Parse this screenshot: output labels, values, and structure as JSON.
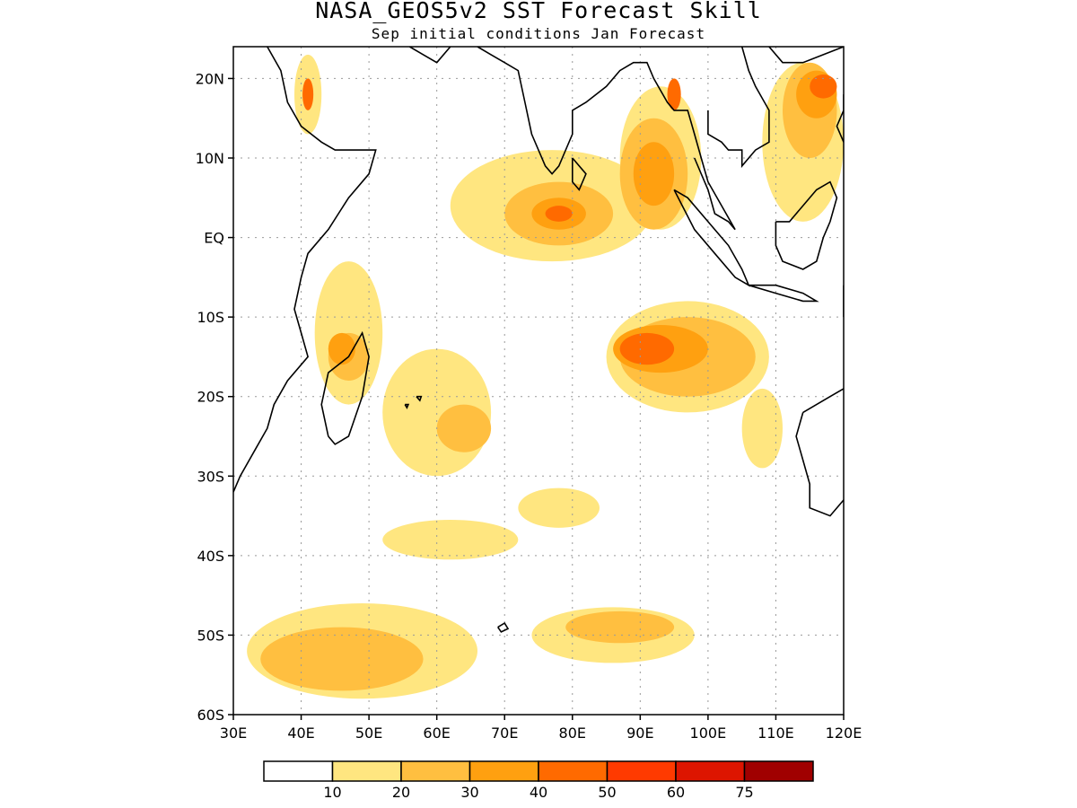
{
  "title": "NASA_GEOS5v2 SST Forecast Skill",
  "subtitle": "Sep initial conditions  Jan Forecast",
  "map": {
    "lon_range": [
      30,
      120
    ],
    "lat_range": [
      -60,
      24
    ],
    "grid": true,
    "lat_ticks": [
      {
        "value": 20,
        "label": "20N"
      },
      {
        "value": 10,
        "label": "10N"
      },
      {
        "value": 0,
        "label": "EQ"
      },
      {
        "value": -10,
        "label": "10S"
      },
      {
        "value": -20,
        "label": "20S"
      },
      {
        "value": -30,
        "label": "30S"
      },
      {
        "value": -40,
        "label": "40S"
      },
      {
        "value": -50,
        "label": "50S"
      },
      {
        "value": -60,
        "label": "60S"
      }
    ],
    "lon_ticks": [
      {
        "value": 30,
        "label": "30E"
      },
      {
        "value": 40,
        "label": "40E"
      },
      {
        "value": 50,
        "label": "50E"
      },
      {
        "value": 60,
        "label": "60E"
      },
      {
        "value": 70,
        "label": "70E"
      },
      {
        "value": 80,
        "label": "80E"
      },
      {
        "value": 90,
        "label": "90E"
      },
      {
        "value": 100,
        "label": "100E"
      },
      {
        "value": 110,
        "label": "110E"
      },
      {
        "value": 120,
        "label": "120E"
      }
    ]
  },
  "colorbar": {
    "colors": [
      "#ffffff",
      "#ffe680",
      "#ffbf40",
      "#ffa010",
      "#ff6a00",
      "#ff3a00",
      "#dd1500",
      "#a00000"
    ],
    "labels": [
      "10",
      "20",
      "30",
      "40",
      "50",
      "60",
      "75"
    ]
  },
  "skill_regions": [
    {
      "level": 1,
      "lon": 49,
      "lat": -52,
      "rx": 17,
      "ry": 6
    },
    {
      "level": 1,
      "lon": 86,
      "lat": -50,
      "rx": 12,
      "ry": 3.5
    },
    {
      "level": 1,
      "lon": 62,
      "lat": -38,
      "rx": 10,
      "ry": 2.5
    },
    {
      "level": 1,
      "lon": 78,
      "lat": -34,
      "rx": 6,
      "ry": 2.5
    },
    {
      "level": 1,
      "lon": 60,
      "lat": -22,
      "rx": 8,
      "ry": 8
    },
    {
      "level": 1,
      "lon": 47,
      "lat": -12,
      "rx": 5,
      "ry": 9
    },
    {
      "level": 1,
      "lon": 97,
      "lat": -15,
      "rx": 12,
      "ry": 7
    },
    {
      "level": 1,
      "lon": 77,
      "lat": 4,
      "rx": 15,
      "ry": 7
    },
    {
      "level": 1,
      "lon": 93,
      "lat": 10,
      "rx": 6,
      "ry": 9
    },
    {
      "level": 1,
      "lon": 114,
      "lat": 12,
      "rx": 6,
      "ry": 10
    },
    {
      "level": 1,
      "lon": 108,
      "lat": -24,
      "rx": 3,
      "ry": 5
    },
    {
      "level": 1,
      "lon": 41,
      "lat": 18,
      "rx": 2,
      "ry": 5
    },
    {
      "level": 2,
      "lon": 46,
      "lat": -53,
      "rx": 12,
      "ry": 4
    },
    {
      "level": 2,
      "lon": 64,
      "lat": -24,
      "rx": 4,
      "ry": 3
    },
    {
      "level": 2,
      "lon": 97,
      "lat": -15,
      "rx": 10,
      "ry": 5
    },
    {
      "level": 2,
      "lon": 78,
      "lat": 3,
      "rx": 8,
      "ry": 4
    },
    {
      "level": 2,
      "lon": 92,
      "lat": 8,
      "rx": 5,
      "ry": 7
    },
    {
      "level": 2,
      "lon": 115,
      "lat": 16,
      "rx": 4,
      "ry": 6
    },
    {
      "level": 2,
      "lon": 47,
      "lat": -15,
      "rx": 3,
      "ry": 3
    },
    {
      "level": 2,
      "lon": 87,
      "lat": -49,
      "rx": 8,
      "ry": 2
    },
    {
      "level": 3,
      "lon": 93,
      "lat": -14,
      "rx": 7,
      "ry": 3
    },
    {
      "level": 3,
      "lon": 78,
      "lat": 3,
      "rx": 4,
      "ry": 2
    },
    {
      "level": 3,
      "lon": 92,
      "lat": 8,
      "rx": 3,
      "ry": 4
    },
    {
      "level": 3,
      "lon": 116,
      "lat": 18,
      "rx": 3,
      "ry": 3
    },
    {
      "level": 3,
      "lon": 46,
      "lat": -14,
      "rx": 2,
      "ry": 2
    },
    {
      "level": 4,
      "lon": 91,
      "lat": -14,
      "rx": 4,
      "ry": 2
    },
    {
      "level": 4,
      "lon": 78,
      "lat": 3,
      "rx": 2,
      "ry": 1
    },
    {
      "level": 4,
      "lon": 117,
      "lat": 19,
      "rx": 2,
      "ry": 1.5
    },
    {
      "level": 4,
      "lon": 41,
      "lat": 18,
      "rx": 0.8,
      "ry": 2
    },
    {
      "level": 4,
      "lon": 95,
      "lat": 18,
      "rx": 1,
      "ry": 2
    }
  ],
  "coastlines": [
    [
      [
        35,
        24
      ],
      [
        37,
        21
      ],
      [
        38,
        17
      ],
      [
        40,
        14
      ],
      [
        43,
        12
      ],
      [
        45,
        11
      ],
      [
        48,
        11
      ],
      [
        51,
        11
      ],
      [
        50,
        8
      ],
      [
        47,
        5
      ],
      [
        44,
        1
      ],
      [
        41,
        -2
      ],
      [
        40,
        -5
      ],
      [
        39,
        -9
      ],
      [
        40,
        -12
      ],
      [
        41,
        -15
      ],
      [
        38,
        -18
      ],
      [
        36,
        -21
      ],
      [
        35,
        -24
      ],
      [
        33,
        -27
      ],
      [
        31,
        -30
      ],
      [
        30,
        -32
      ]
    ],
    [
      [
        44,
        -25
      ],
      [
        43,
        -21
      ],
      [
        44,
        -17
      ],
      [
        47,
        -15
      ],
      [
        49,
        -12
      ],
      [
        50,
        -15
      ],
      [
        49,
        -20
      ],
      [
        47,
        -25
      ],
      [
        45,
        -26
      ],
      [
        44,
        -25
      ]
    ],
    [
      [
        56,
        24
      ],
      [
        58,
        23
      ],
      [
        60,
        22
      ],
      [
        62,
        24
      ]
    ],
    [
      [
        66,
        24
      ],
      [
        68,
        23
      ],
      [
        70,
        22
      ],
      [
        72,
        21
      ],
      [
        73,
        17
      ],
      [
        74,
        13
      ],
      [
        76,
        9
      ],
      [
        77,
        8
      ],
      [
        78,
        9
      ],
      [
        80,
        13
      ],
      [
        80,
        16
      ],
      [
        82,
        17
      ],
      [
        85,
        19
      ],
      [
        87,
        21
      ],
      [
        89,
        22
      ],
      [
        91,
        22
      ],
      [
        92,
        20
      ],
      [
        94,
        17
      ],
      [
        95,
        16
      ],
      [
        97,
        16
      ],
      [
        98,
        13
      ],
      [
        99,
        10
      ],
      [
        100,
        7
      ],
      [
        102,
        4
      ],
      [
        104,
        1
      ],
      [
        103,
        2
      ],
      [
        101,
        3
      ],
      [
        100,
        6
      ],
      [
        99,
        8
      ],
      [
        98,
        10
      ]
    ],
    [
      [
        95,
        6
      ],
      [
        97,
        5
      ],
      [
        100,
        2
      ],
      [
        103,
        -1
      ],
      [
        105,
        -4
      ],
      [
        106,
        -6
      ],
      [
        104,
        -5
      ],
      [
        101,
        -2
      ],
      [
        98,
        1
      ],
      [
        95,
        6
      ]
    ],
    [
      [
        106,
        -6
      ],
      [
        110,
        -7
      ],
      [
        114,
        -8
      ],
      [
        116,
        -8
      ],
      [
        114,
        -7
      ],
      [
        110,
        -6
      ],
      [
        106,
        -6
      ]
    ],
    [
      [
        80,
        10
      ],
      [
        82,
        8
      ],
      [
        81,
        6
      ],
      [
        80,
        7
      ],
      [
        80,
        10
      ]
    ],
    [
      [
        105,
        24
      ],
      [
        106,
        21
      ],
      [
        107,
        19
      ],
      [
        109,
        16
      ],
      [
        109,
        12
      ],
      [
        107,
        11
      ],
      [
        105,
        9
      ],
      [
        105,
        11
      ],
      [
        103,
        11
      ],
      [
        102,
        12
      ],
      [
        100,
        13
      ],
      [
        100,
        16
      ]
    ],
    [
      [
        109,
        24
      ],
      [
        111,
        22
      ],
      [
        114,
        22
      ],
      [
        117,
        23
      ],
      [
        120,
        24
      ]
    ],
    [
      [
        110,
        2
      ],
      [
        112,
        2
      ],
      [
        114,
        4
      ],
      [
        116,
        6
      ],
      [
        118,
        7
      ],
      [
        119,
        5
      ],
      [
        118,
        2
      ],
      [
        117,
        0
      ],
      [
        116,
        -3
      ],
      [
        114,
        -4
      ],
      [
        111,
        -3
      ],
      [
        110,
        -1
      ],
      [
        110,
        2
      ]
    ],
    [
      [
        120,
        -6
      ],
      [
        120,
        -10
      ]
    ],
    [
      [
        114,
        -22
      ],
      [
        116,
        -21
      ],
      [
        118,
        -20
      ],
      [
        120,
        -19
      ]
    ],
    [
      [
        120,
        -33
      ],
      [
        118,
        -35
      ],
      [
        115,
        -34
      ],
      [
        115,
        -31
      ],
      [
        114,
        -28
      ],
      [
        113,
        -25
      ],
      [
        114,
        -22
      ]
    ],
    [
      [
        120,
        12
      ],
      [
        119,
        14
      ],
      [
        120,
        16
      ],
      [
        120,
        18
      ]
    ],
    [
      [
        69,
        -49
      ],
      [
        70,
        -48.5
      ],
      [
        70.5,
        -49.2
      ],
      [
        69.5,
        -49.6
      ],
      [
        69,
        -49
      ]
    ],
    [
      [
        57,
        -20
      ],
      [
        57.7,
        -20
      ],
      [
        57.5,
        -20.5
      ],
      [
        57,
        -20
      ]
    ],
    [
      [
        55.3,
        -21
      ],
      [
        55.8,
        -21
      ],
      [
        55.6,
        -21.4
      ],
      [
        55.3,
        -21
      ]
    ]
  ]
}
